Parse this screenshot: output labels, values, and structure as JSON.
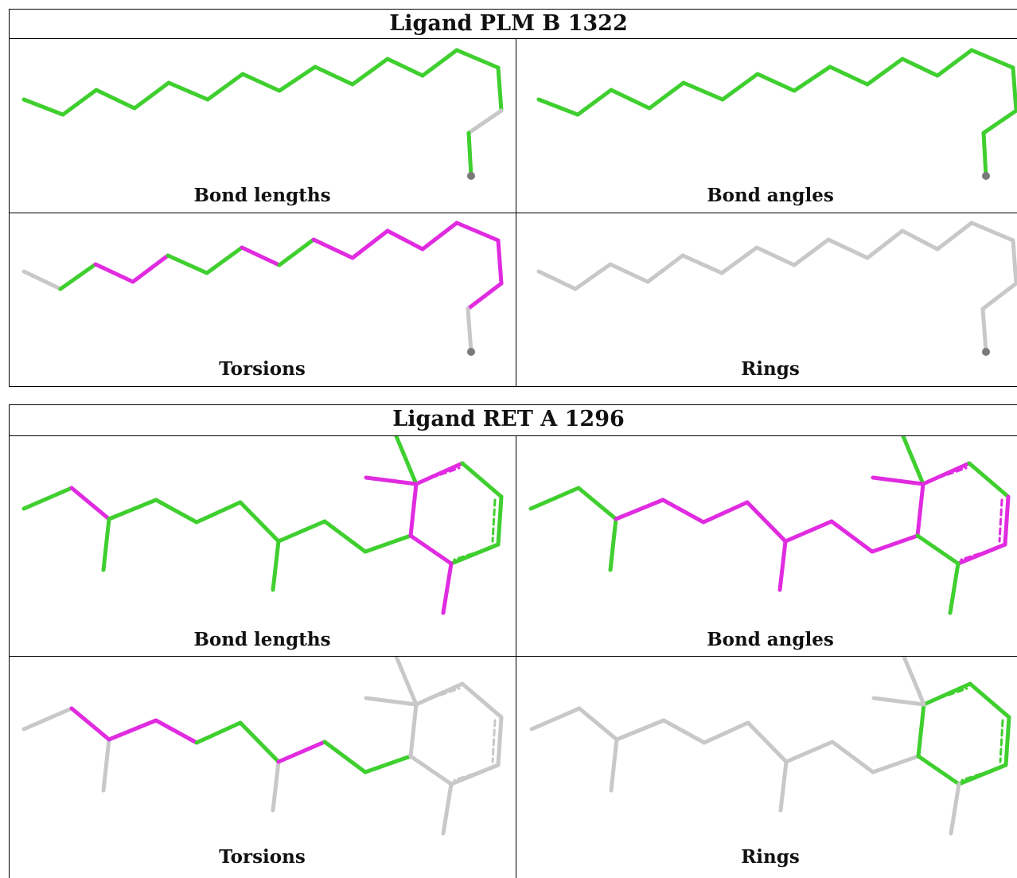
{
  "colors": {
    "good": "#3fcf2f",
    "outlier": "#e02be0",
    "not_assessed": "#c8c8c8",
    "metal_atom": "#7a7a7a"
  },
  "ligands": [
    {
      "title": "Ligand PLM B 1322",
      "panels": [
        {
          "caption": "Bond lengths"
        },
        {
          "caption": "Bond angles"
        },
        {
          "caption": "Torsions"
        },
        {
          "caption": "Rings"
        }
      ]
    },
    {
      "title": "Ligand RET A 1296",
      "panels": [
        {
          "caption": "Bond lengths"
        },
        {
          "caption": "Bond angles"
        },
        {
          "caption": "Torsions"
        },
        {
          "caption": "Rings"
        }
      ]
    }
  ]
}
